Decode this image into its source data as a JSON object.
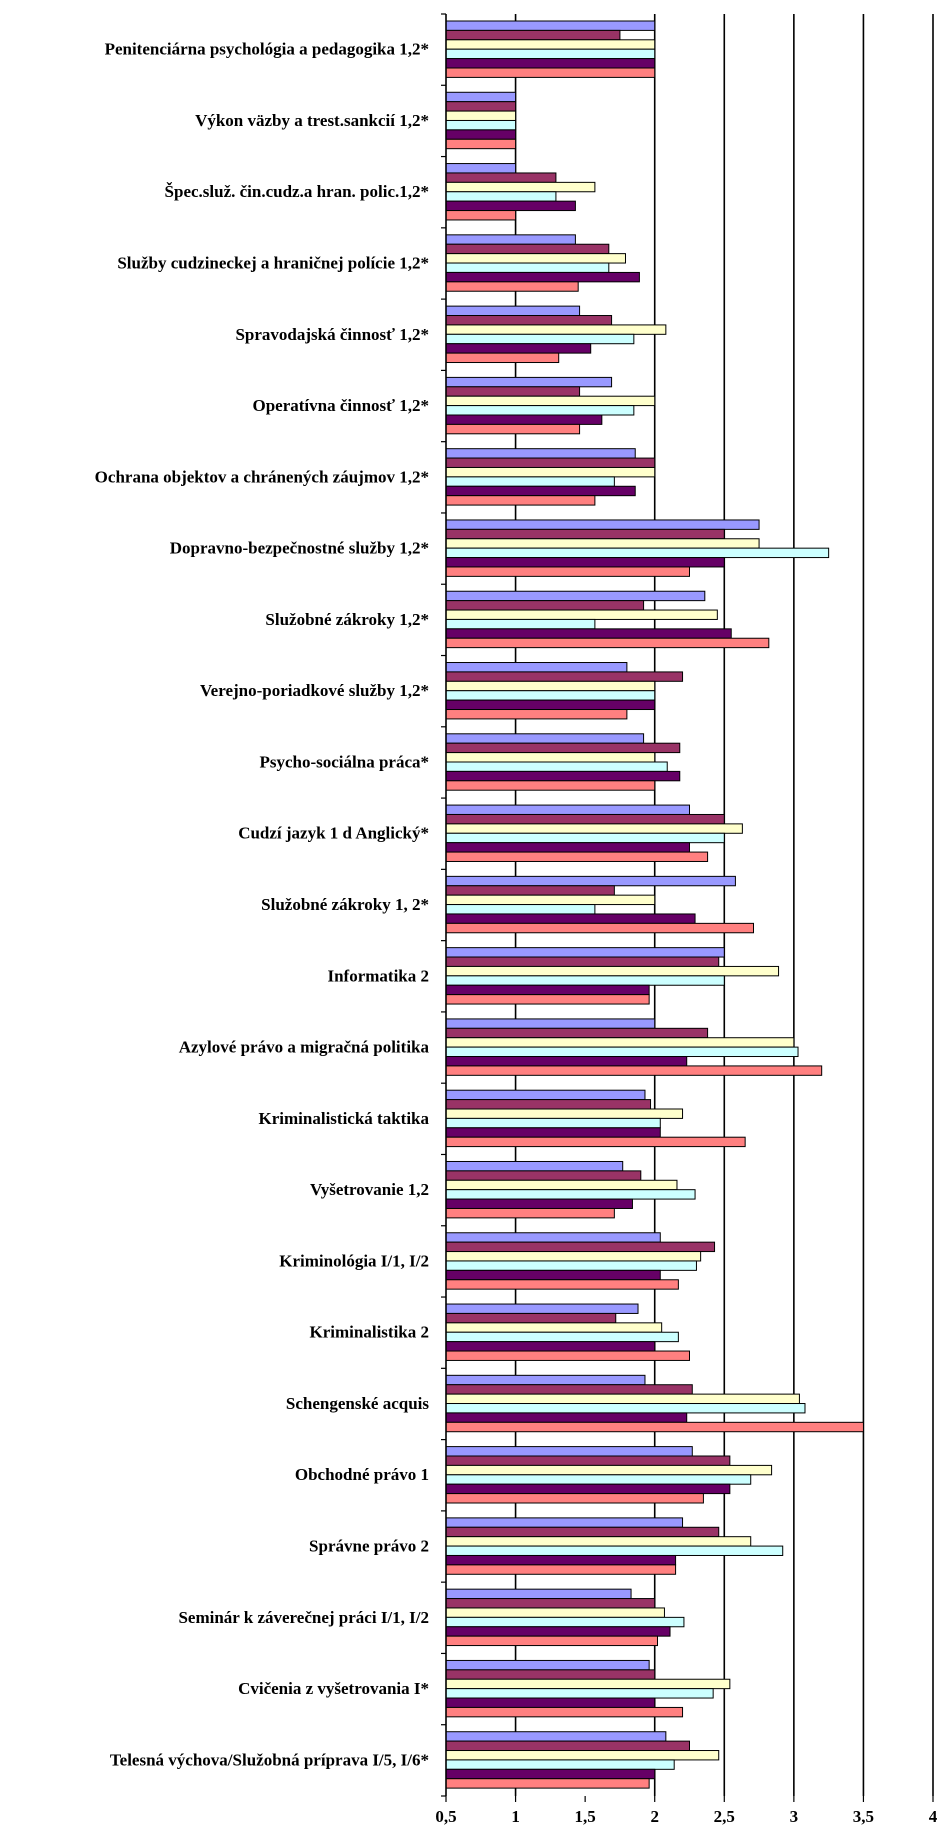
{
  "chart_data": {
    "type": "bar",
    "orientation": "horizontal",
    "xlim": [
      0.5,
      4
    ],
    "ticks": [
      "0,5",
      "1",
      "1,5",
      "2",
      "2,5",
      "3",
      "3,5",
      "4"
    ],
    "tick_values": [
      0.5,
      1,
      1.5,
      2,
      2.5,
      3,
      3.5,
      4
    ],
    "grid": "vertical gridlines at 1, 2, 2.5, 3, 3.5, 4",
    "legend": "none",
    "colors": [
      "#9999FF",
      "#993366",
      "#FFFFCC",
      "#CCFFFF",
      "#660066",
      "#FF8080"
    ],
    "categories": [
      "Penitenciárna psychológia a pedagogika 1,2*",
      "Výkon väzby a trest.sankcií 1,2*",
      "Špec.služ. čin.cudz.a hran. polic.1,2*",
      "Služby cudzineckej a hraničnej polície 1,2*",
      "Spravodajská činnosť 1,2*",
      "Operatívna činnosť 1,2*",
      "Ochrana objektov a chránených záujmov 1,2*",
      "Dopravno-bezpečnostné služby 1,2*",
      "Služobné zákroky 1,2*",
      "Verejno-poriadkové služby 1,2*",
      "Psycho-sociálna práca*",
      "Cudzí jazyk 1 d Anglický*",
      "Služobné zákroky 1, 2*",
      "Informatika 2",
      "Azylové právo a migračná politika",
      "Kriminalistická taktika",
      "Vyšetrovanie 1,2",
      "Kriminológia I/1, I/2",
      "Kriminalistika 2",
      "Schengenské acquis",
      "Obchodné právo 1",
      "Správne právo 2",
      "Seminár k záverečnej práci I/1, I/2",
      "Cvičenia z vyšetrovania I*",
      "Telesná výchova/Služobná príprava I/5, I/6*"
    ],
    "series": [
      {
        "values": [
          2.0,
          1.0,
          1.0,
          1.43,
          1.46,
          1.69,
          1.86,
          2.75,
          2.36,
          1.8,
          1.92,
          2.25,
          2.58,
          2.5,
          2.0,
          1.93,
          1.77,
          2.04,
          1.88,
          1.93,
          2.27,
          2.2,
          1.83,
          1.96,
          2.08
        ]
      },
      {
        "values": [
          1.75,
          1.0,
          1.29,
          1.67,
          1.69,
          1.46,
          2.0,
          2.5,
          1.92,
          2.2,
          2.18,
          2.5,
          1.71,
          2.46,
          2.38,
          1.97,
          1.9,
          2.43,
          1.72,
          2.27,
          2.54,
          2.46,
          2.0,
          2.0,
          2.25
        ]
      },
      {
        "values": [
          2.0,
          1.0,
          1.57,
          1.79,
          2.08,
          2.0,
          2.0,
          2.75,
          2.45,
          2.0,
          2.0,
          2.63,
          2.0,
          2.89,
          3.0,
          2.2,
          2.16,
          2.33,
          2.05,
          3.04,
          2.84,
          2.69,
          2.07,
          2.54,
          2.46
        ]
      },
      {
        "values": [
          2.0,
          1.0,
          1.29,
          1.67,
          1.85,
          1.85,
          1.71,
          3.25,
          1.57,
          2.0,
          2.09,
          2.5,
          1.57,
          2.5,
          3.03,
          2.04,
          2.29,
          2.3,
          2.17,
          3.08,
          2.69,
          2.92,
          2.21,
          2.42,
          2.14
        ]
      },
      {
        "values": [
          2.0,
          1.0,
          1.43,
          1.89,
          1.54,
          1.62,
          1.86,
          2.5,
          2.55,
          2.0,
          2.18,
          2.25,
          2.29,
          1.96,
          2.23,
          2.04,
          1.84,
          2.04,
          2.0,
          2.23,
          2.54,
          2.15,
          2.11,
          2.0,
          2.0
        ]
      },
      {
        "values": [
          2.0,
          1.0,
          1.0,
          1.45,
          1.31,
          1.46,
          1.57,
          2.25,
          2.82,
          1.8,
          2.0,
          2.38,
          2.71,
          1.96,
          3.2,
          2.65,
          1.71,
          2.17,
          2.25,
          3.5,
          2.35,
          2.15,
          2.02,
          2.2,
          1.96
        ]
      }
    ]
  }
}
